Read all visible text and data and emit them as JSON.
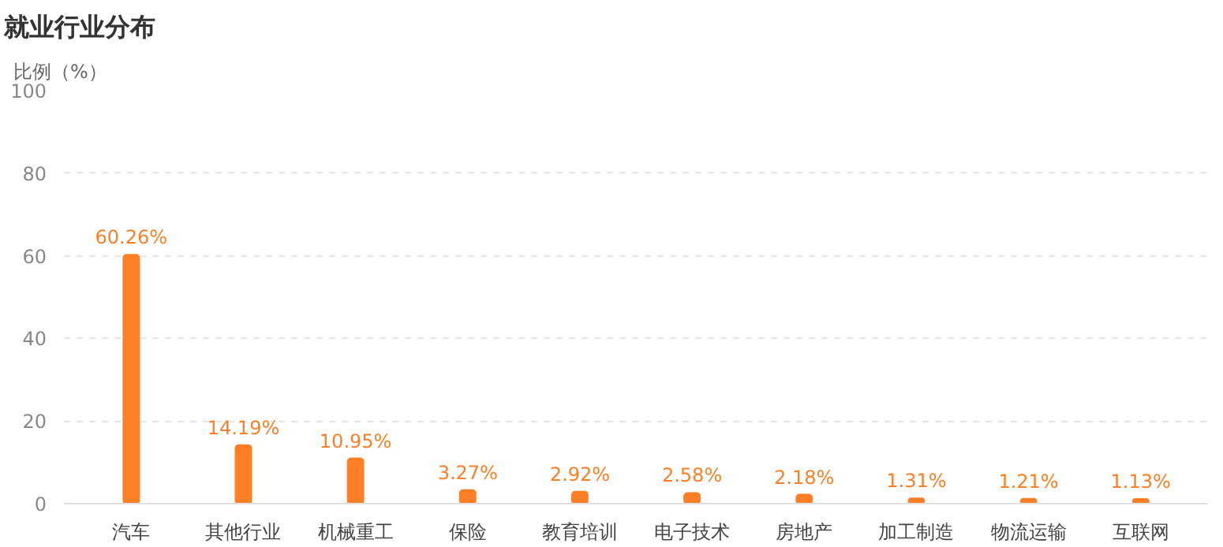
{
  "chart_data": {
    "type": "bar",
    "title": "就业行业分布",
    "ylabel": "比例（%）",
    "categories": [
      "汽车",
      "其他行业",
      "机械重工",
      "保险",
      "教育培训",
      "电子技术",
      "房地产",
      "加工制造",
      "物流运输",
      "互联网"
    ],
    "values": [
      60.26,
      14.19,
      10.95,
      3.27,
      2.92,
      2.58,
      2.18,
      1.31,
      1.21,
      1.13
    ],
    "value_labels": [
      "60.26%",
      "14.19%",
      "10.95%",
      "3.27%",
      "2.92%",
      "2.58%",
      "2.18%",
      "1.31%",
      "1.21%",
      "1.13%"
    ],
    "color": "#ff7f27",
    "ylim": [
      0,
      100
    ],
    "yticks": [
      0,
      20,
      40,
      60,
      80,
      100
    ],
    "grid": "y"
  }
}
